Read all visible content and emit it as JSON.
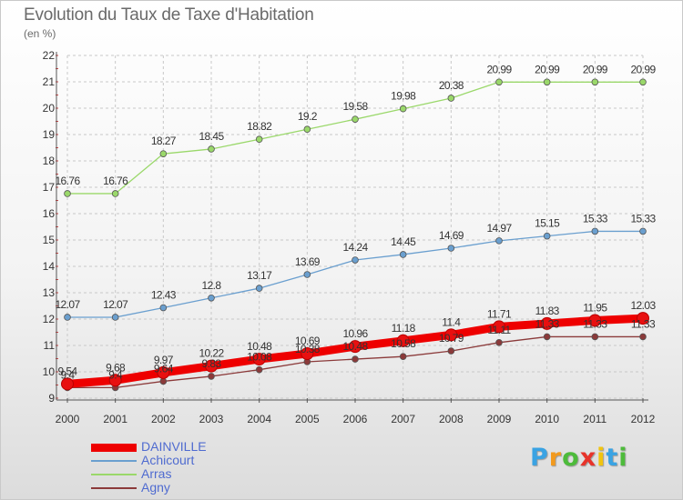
{
  "header": {
    "title": "Evolution du Taux de Taxe d'Habitation",
    "unit": "(en %)"
  },
  "chart_data": {
    "type": "line",
    "title": "Evolution du Taux de Taxe d'Habitation",
    "ylabel": "(en %)",
    "xlabel": "",
    "x": [
      "2000",
      "2001",
      "2002",
      "2003",
      "2004",
      "2005",
      "2006",
      "2007",
      "2008",
      "2009",
      "2010",
      "2011",
      "2012"
    ],
    "ylim": [
      9,
      22
    ],
    "yticks": [
      "9",
      "10",
      "11",
      "12",
      "13",
      "14",
      "15",
      "16",
      "17",
      "18",
      "19",
      "20",
      "21",
      "22"
    ],
    "grid": true,
    "legend_position": "bottom-left",
    "series": [
      {
        "name": "Arras",
        "color": "#9ad86a",
        "values": [
          16.76,
          16.76,
          18.27,
          18.45,
          18.82,
          19.2,
          19.58,
          19.98,
          20.38,
          20.99,
          20.99,
          20.99,
          20.99
        ],
        "labels": [
          "16.76",
          "16.76",
          "18.27",
          "18.45",
          "18.82",
          "19.2",
          "19.58",
          "19.98",
          "20.38",
          "20.99",
          "20.99",
          "20.99",
          "20.99"
        ]
      },
      {
        "name": "Achicourt",
        "color": "#6a9fcf",
        "values": [
          12.07,
          12.07,
          12.43,
          12.8,
          13.17,
          13.69,
          14.24,
          14.45,
          14.69,
          14.97,
          15.15,
          15.33,
          15.33
        ],
        "labels": [
          "12.07",
          "12.07",
          "12.43",
          "12.8",
          "13.17",
          "13.69",
          "14.24",
          "14.45",
          "14.69",
          "14.97",
          "15.15",
          "15.33",
          "15.33"
        ]
      },
      {
        "name": "Agny",
        "color": "#8b3a3a",
        "values": [
          9.4,
          9.4,
          9.64,
          9.83,
          10.08,
          10.38,
          10.48,
          10.58,
          10.79,
          11.11,
          11.33,
          11.33,
          11.33
        ],
        "labels": [
          "9.4",
          "9.4",
          "9.64",
          "9.83",
          "10.08",
          "10.38",
          "10.48",
          "10.58",
          "10.79",
          "11.11",
          "11.33",
          "11.33",
          "11.33"
        ]
      },
      {
        "name": "DAINVILLE",
        "color": "#ee0000",
        "values": [
          9.54,
          9.68,
          9.97,
          10.22,
          10.48,
          10.69,
          10.96,
          11.18,
          11.4,
          11.71,
          11.83,
          11.95,
          12.03
        ],
        "labels": [
          "9.54",
          "9.68",
          "9.97",
          "10.22",
          "10.48",
          "10.69",
          "10.96",
          "11.18",
          "11.4",
          "11.71",
          "11.83",
          "11.95",
          "12.03"
        ]
      }
    ]
  },
  "legend": [
    {
      "name": "DAINVILLE",
      "color": "#ee0000"
    },
    {
      "name": "Achicourt",
      "color": "#6a9fcf"
    },
    {
      "name": "Arras",
      "color": "#9ad86a"
    },
    {
      "name": "Agny",
      "color": "#8b3a3a"
    }
  ],
  "logo": {
    "letters": [
      "P",
      "r",
      "o",
      "x",
      "i",
      "t",
      "i"
    ],
    "colors": [
      "#3aa3e3",
      "#f29a1e",
      "#4dbb3b",
      "#e7332a",
      "#f1c40f",
      "#3aa3e3",
      "#4dbb3b"
    ]
  }
}
